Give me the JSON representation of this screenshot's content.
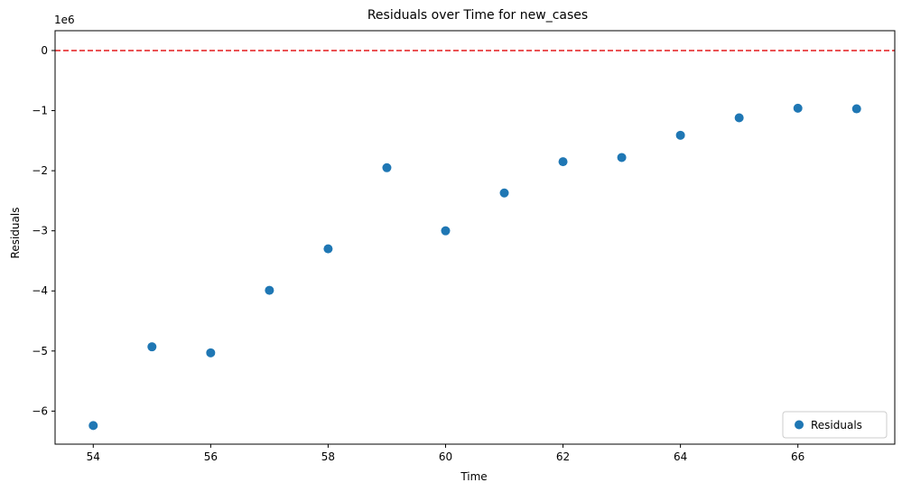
{
  "chart_data": {
    "type": "scatter",
    "title": "Residuals over Time for new_cases",
    "xlabel": "Time",
    "ylabel": "Residuals",
    "y_offset_label": "1e6",
    "y_scale_factor": 1000000,
    "xlim": [
      53.35,
      67.65
    ],
    "ylim": [
      -6550000,
      330000
    ],
    "x_ticks": [
      54,
      56,
      58,
      60,
      62,
      64,
      66
    ],
    "y_ticks": [
      0,
      -1,
      -2,
      -3,
      -4,
      -5,
      -6
    ],
    "grid": false,
    "legend_position": "lower-right",
    "reference_line": {
      "y": 0,
      "color": "#e41a1c",
      "style": "dashed"
    },
    "series": [
      {
        "name": "Residuals",
        "color": "#1f77b4",
        "x": [
          54,
          55,
          56,
          57,
          58,
          59,
          60,
          61,
          62,
          63,
          64,
          65,
          66,
          67
        ],
        "y": [
          -6240000,
          -4930000,
          -5030000,
          -3990000,
          -3300000,
          -1950000,
          -3000000,
          -2370000,
          -1850000,
          -1780000,
          -1410000,
          -1120000,
          -960000,
          -970000
        ]
      }
    ]
  }
}
